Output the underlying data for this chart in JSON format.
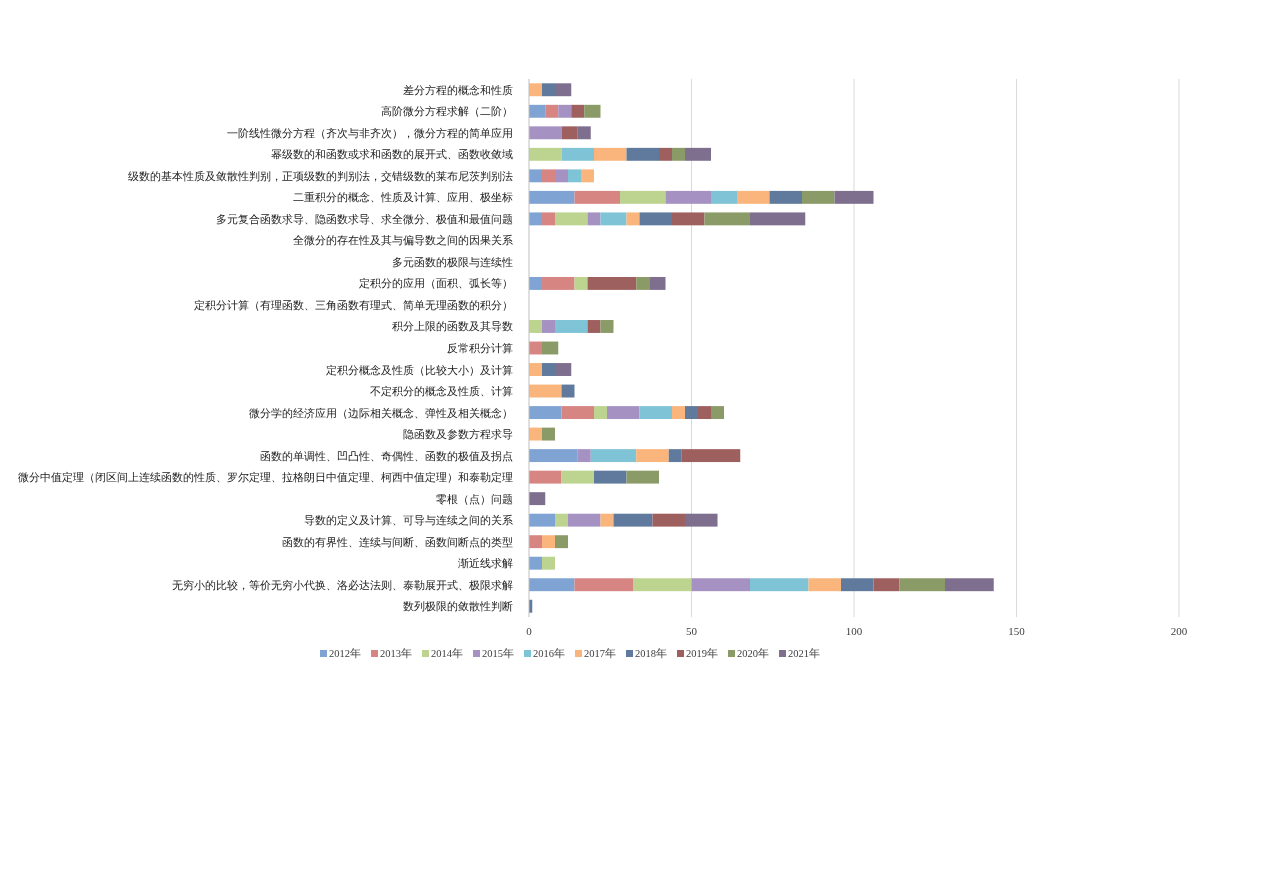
{
  "chart_data": {
    "type": "bar",
    "orientation": "horizontal",
    "stacked": true,
    "categories": [
      "差分方程的概念和性质",
      "高阶微分方程求解（二阶）",
      "一阶线性微分方程（齐次与非齐次），微分方程的简单应用",
      "幂级数的和函数或求和函数的展开式、函数收敛域",
      "级数的基本性质及敛散性判别，正项级数的判别法，交错级数的莱布尼茨判别法",
      "二重积分的概念、性质及计算、应用、极坐标",
      "多元复合函数求导、隐函数求导、求全微分、极值和最值问题",
      "全微分的存在性及其与偏导数之间的因果关系",
      "多元函数的极限与连续性",
      "定积分的应用（面积、弧长等）",
      "定积分计算（有理函数、三角函数有理式、简单无理函数的积分）",
      "积分上限的函数及其导数",
      "反常积分计算",
      "定积分概念及性质（比较大小）及计算",
      "不定积分的概念及性质、计算",
      "微分学的经济应用（边际相关概念、弹性及相关概念）",
      "隐函数及参数方程求导",
      "函数的单调性、凹凸性、奇偶性、函数的极值及拐点",
      "微分中值定理（闭区间上连续函数的性质、罗尔定理、拉格朗日中值定理、柯西中值定理）和泰勒定理",
      "零根（点）问题",
      "导数的定义及计算、可导与连续之间的关系",
      "函数的有界性、连续与间断、函数间断点的类型",
      "渐近线求解",
      "无穷小的比较，等价无穷小代换、洛必达法则、泰勒展开式、极限求解",
      "数列极限的敛散性判断"
    ],
    "series": [
      {
        "name": "2012年",
        "color": "#7fa3d3",
        "values": [
          null,
          5,
          null,
          null,
          4,
          14,
          4,
          null,
          null,
          4,
          null,
          null,
          null,
          null,
          null,
          10,
          null,
          15,
          null,
          null,
          8,
          null,
          4,
          14,
          null
        ]
      },
      {
        "name": "2013年",
        "color": "#d68582",
        "values": [
          null,
          4,
          null,
          null,
          4,
          14,
          4,
          null,
          null,
          10,
          null,
          null,
          4,
          null,
          null,
          10,
          null,
          null,
          10,
          null,
          null,
          4,
          null,
          18,
          null
        ]
      },
      {
        "name": "2014年",
        "color": "#bcd48f",
        "values": [
          null,
          null,
          null,
          10,
          null,
          14,
          10,
          null,
          null,
          4,
          null,
          4,
          null,
          null,
          null,
          4,
          null,
          null,
          10,
          null,
          4,
          null,
          4,
          18,
          null
        ]
      },
      {
        "name": "2015年",
        "color": "#a592c2",
        "values": [
          null,
          4,
          10,
          null,
          4,
          14,
          4,
          null,
          null,
          null,
          null,
          4,
          null,
          null,
          null,
          10,
          null,
          4,
          null,
          null,
          10,
          null,
          null,
          18,
          null
        ]
      },
      {
        "name": "2016年",
        "color": "#7fc3d6",
        "values": [
          null,
          null,
          null,
          10,
          4,
          8,
          8,
          null,
          null,
          null,
          null,
          10,
          null,
          null,
          null,
          10,
          null,
          14,
          null,
          null,
          null,
          null,
          null,
          18,
          null
        ]
      },
      {
        "name": "2017年",
        "color": "#f9b57c",
        "values": [
          4,
          null,
          null,
          10,
          4,
          10,
          4,
          null,
          null,
          null,
          null,
          null,
          null,
          4,
          10,
          4,
          4,
          10,
          null,
          null,
          4,
          4,
          null,
          10,
          null
        ]
      },
      {
        "name": "2018年",
        "color": "#5f7a9c",
        "values": [
          4,
          null,
          null,
          10,
          null,
          10,
          10,
          null,
          null,
          null,
          null,
          null,
          null,
          4,
          4,
          4,
          null,
          4,
          10,
          null,
          12,
          null,
          null,
          10,
          1
        ]
      },
      {
        "name": "2019年",
        "color": "#9e605e",
        "values": [
          null,
          4,
          5,
          4,
          null,
          null,
          10,
          null,
          null,
          15,
          null,
          4,
          null,
          null,
          null,
          4,
          null,
          18,
          null,
          null,
          10,
          null,
          null,
          8,
          null
        ]
      },
      {
        "name": "2020年",
        "color": "#8b9b68",
        "values": [
          null,
          5,
          null,
          4,
          null,
          10,
          14,
          null,
          null,
          4,
          null,
          4,
          5,
          null,
          null,
          4,
          4,
          null,
          10,
          null,
          null,
          4,
          null,
          14,
          null
        ]
      },
      {
        "name": "2021年",
        "color": "#7e6f8f",
        "values": [
          5,
          null,
          4,
          8,
          null,
          12,
          17,
          null,
          null,
          5,
          null,
          null,
          null,
          5,
          null,
          null,
          null,
          null,
          null,
          5,
          10,
          null,
          null,
          15,
          null
        ]
      }
    ],
    "xlim": [
      0,
      200
    ],
    "xticks": [
      0,
      50,
      100,
      150,
      200
    ],
    "grid": "x",
    "legend": "bottom"
  }
}
